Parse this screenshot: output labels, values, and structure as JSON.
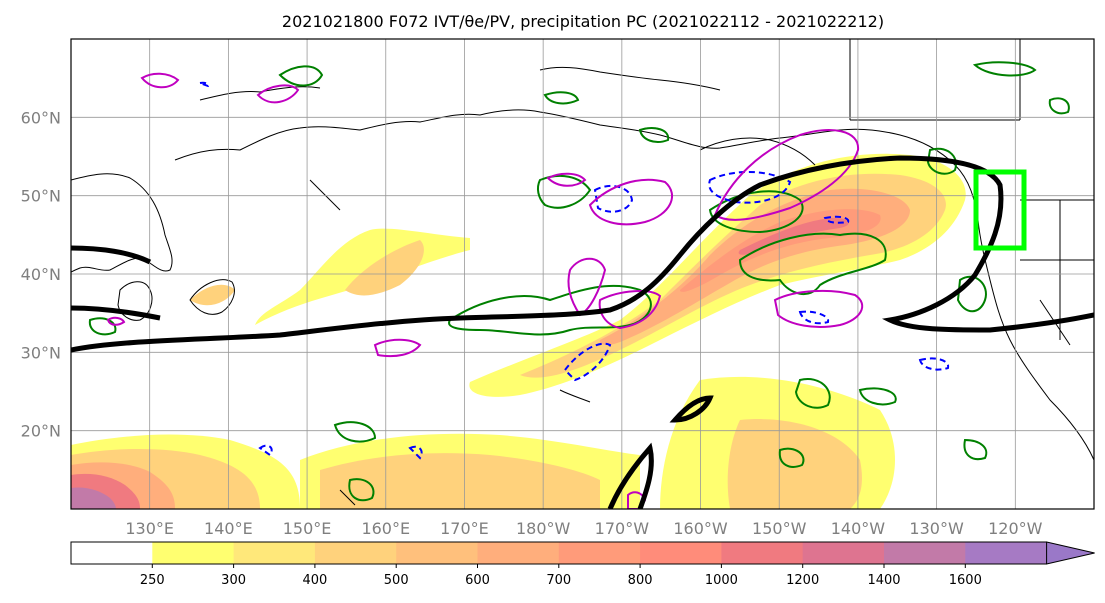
{
  "title": "2021021800 F072 IVT/θe/PV, precipitation PC (2021022112 - 2021022212)",
  "map": {
    "lon_range": [
      120,
      250
    ],
    "lat_range": [
      10,
      70
    ],
    "lat_labels": [
      "60°N",
      "50°N",
      "40°N",
      "30°N",
      "20°N"
    ],
    "lon_labels": [
      "130°E",
      "140°E",
      "150°E",
      "160°E",
      "170°E",
      "180°W",
      "170°W",
      "160°W",
      "150°W",
      "140°W",
      "130°W",
      "120°W"
    ]
  },
  "colorbar": {
    "levels": [
      "250",
      "300",
      "400",
      "500",
      "600",
      "700",
      "800",
      "1000",
      "1200",
      "1400",
      "1600"
    ],
    "colors": [
      "#ffff70",
      "#ffe87a",
      "#ffd27c",
      "#ffc07c",
      "#ffae7c",
      "#ff9b7a",
      "#ff8c7a",
      "#f07a80",
      "#de7490",
      "#c27aa8",
      "#a67ac4",
      "#9a78c8"
    ],
    "extend": "max"
  },
  "overlays": {
    "ivt_fill_color": "#ffcc66",
    "theta_e_contour_color": "#000000",
    "pv_contour_color": "#008000",
    "pv_negative_color": "#0000ff",
    "precip_contour_color": "#c000c0",
    "box_color": "#00ff00"
  },
  "icons": {
    "coastline": "coastline-lines"
  }
}
